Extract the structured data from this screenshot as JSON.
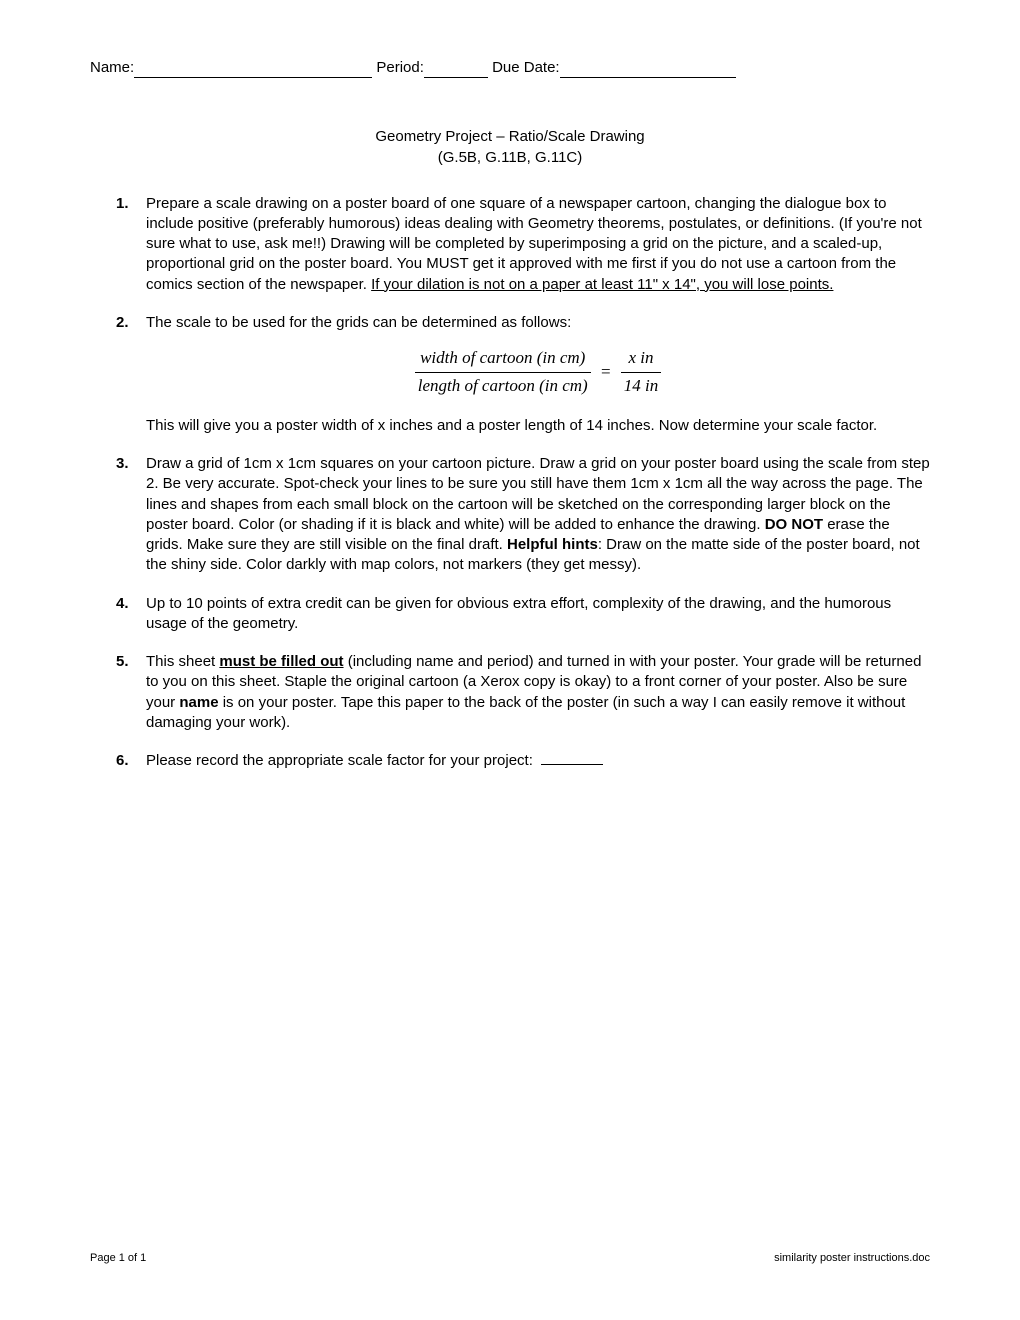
{
  "header": {
    "name_label": "Name:",
    "name_blank_width": 238,
    "period_label": " Period:",
    "period_blank_width": 64,
    "due_label": " Due Date:",
    "due_blank_width": 176
  },
  "title": {
    "line1": "Geometry Project – Ratio/Scale Drawing",
    "line2": "(G.5B, G.11B, G.11C)"
  },
  "items": {
    "one": {
      "num": "1.",
      "pre": "Prepare a scale drawing on a poster board of one square of a newspaper cartoon, changing the dialogue box to include positive (preferably humorous) ideas dealing with Geometry theorems, postulates, or definitions. (If you're not sure what to use, ask me!!)  Drawing will be completed by superimposing a grid on the picture, and a scaled-up, proportional grid on the poster board.  You MUST get it approved with me first if you do not use a cartoon from the comics section of the newspaper.  ",
      "under": "If your dilation is not on a paper at least 11\" x 14\", you will lose points."
    },
    "two": {
      "num": "2.",
      "intro": "The scale to be used for the grids can be determined as follows:",
      "frac_top_left": "width of cartoon (in cm)",
      "frac_bot_left": "length of cartoon (in cm)",
      "frac_top_right": "x  in",
      "frac_bot_right": "14 in",
      "eq": "=",
      "after": "This will give you a poster width of x inches and a poster length of 14 inches. Now determine your scale factor."
    },
    "three": {
      "num": "3.",
      "pre": "Draw a grid of 1cm x 1cm squares on your cartoon picture.  Draw a grid on your poster board using the scale from step 2.  Be very accurate.  Spot-check your lines to be sure you still have them 1cm x 1cm all the way across the page. The lines and shapes from each small block on the cartoon will be sketched on the corresponding larger block on the poster board.  Color (or shading if it is black and white) will be added to enhance the drawing.  ",
      "donot": "DO NOT",
      "mid": " erase the grids. Make sure they are still visible on the final draft. ",
      "hints_label": "Helpful hints",
      "hints_text": ":  Draw on the matte side of the poster board, not the shiny side.  Color darkly with map colors, not markers (they get messy)."
    },
    "four": {
      "num": "4.",
      "text": "Up to 10 points of extra credit can be given for obvious extra effort, complexity of the drawing, and the humorous usage of the geometry."
    },
    "five": {
      "num": "5.",
      "pre": "This sheet ",
      "must": "must be filled out",
      "mid1": " (including name and period) and turned in with your poster.  Your grade will be returned to you on this sheet.  Staple the original cartoon (a Xerox copy is okay) to a front corner of your poster.  Also be sure your ",
      "name_bold": "name",
      "post": " is on your poster.  Tape this paper to the back of the poster (in such a way I can easily remove it without damaging your work)."
    },
    "six": {
      "num": "6.",
      "text": "Please record the appropriate scale factor for your project:  "
    }
  },
  "footer": {
    "left": "Page 1 of 1",
    "right": "similarity poster instructions.doc"
  }
}
